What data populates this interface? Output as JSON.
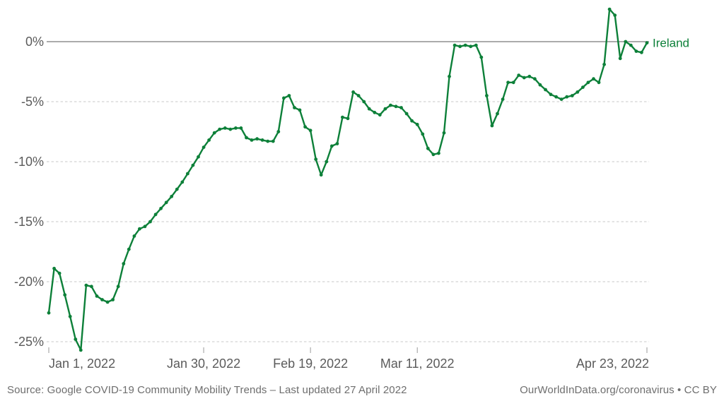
{
  "chart": {
    "series_label": "Ireland",
    "footer": {
      "source": "Source: Google COVID-19 Community Mobility Trends – Last updated 27 April 2022",
      "attribution": "OurWorldInData.org/coronavirus • CC BY"
    },
    "colors": {
      "series_green": "#0d8039",
      "zero_line": "#8f8f8f",
      "dashed_grid": "#dcdcdc",
      "axis_text": "#5b5b5b",
      "footer_text": "#6e6e6e",
      "tick_mark": "#9a9a9a"
    }
  },
  "chart_data": {
    "type": "line",
    "title": "",
    "xlabel": "",
    "ylabel": "",
    "grid": "horizontal-dashed",
    "legend_position": "end-of-line-label",
    "ylim": [
      -27.5,
      3.6
    ],
    "unit": "%",
    "y_ticks": [
      {
        "label": "0%",
        "value": 0
      },
      {
        "label": "-5%",
        "value": -5
      },
      {
        "label": "-10%",
        "value": -10
      },
      {
        "label": "-15%",
        "value": -15
      },
      {
        "label": "-20%",
        "value": -20
      },
      {
        "label": "-25%",
        "value": -25
      }
    ],
    "x_tick_labels": [
      {
        "label": "Jan 1, 2022",
        "day_index": 0,
        "align": "start"
      },
      {
        "label": "Jan 30, 2022",
        "day_index": 29,
        "align": "middle"
      },
      {
        "label": "Feb 19, 2022",
        "day_index": 49,
        "align": "middle"
      },
      {
        "label": "Mar 11, 2022",
        "day_index": 69,
        "align": "middle"
      },
      {
        "label": "Apr 23, 2022",
        "day_index": 112,
        "align": "end"
      }
    ],
    "x": [
      "2022-01-01",
      "2022-01-02",
      "2022-01-03",
      "2022-01-04",
      "2022-01-05",
      "2022-01-06",
      "2022-01-07",
      "2022-01-08",
      "2022-01-09",
      "2022-01-10",
      "2022-01-11",
      "2022-01-12",
      "2022-01-13",
      "2022-01-14",
      "2022-01-15",
      "2022-01-16",
      "2022-01-17",
      "2022-01-18",
      "2022-01-19",
      "2022-01-20",
      "2022-01-21",
      "2022-01-22",
      "2022-01-23",
      "2022-01-24",
      "2022-01-25",
      "2022-01-26",
      "2022-01-27",
      "2022-01-28",
      "2022-01-29",
      "2022-01-30",
      "2022-01-31",
      "2022-02-01",
      "2022-02-02",
      "2022-02-03",
      "2022-02-04",
      "2022-02-05",
      "2022-02-06",
      "2022-02-07",
      "2022-02-08",
      "2022-02-09",
      "2022-02-10",
      "2022-02-11",
      "2022-02-12",
      "2022-02-13",
      "2022-02-14",
      "2022-02-15",
      "2022-02-16",
      "2022-02-17",
      "2022-02-18",
      "2022-02-19",
      "2022-02-20",
      "2022-02-21",
      "2022-02-22",
      "2022-02-23",
      "2022-02-24",
      "2022-02-25",
      "2022-02-26",
      "2022-02-27",
      "2022-02-28",
      "2022-03-01",
      "2022-03-02",
      "2022-03-03",
      "2022-03-04",
      "2022-03-05",
      "2022-03-06",
      "2022-03-07",
      "2022-03-08",
      "2022-03-09",
      "2022-03-10",
      "2022-03-11",
      "2022-03-12",
      "2022-03-13",
      "2022-03-14",
      "2022-03-15",
      "2022-03-16",
      "2022-03-17",
      "2022-03-18",
      "2022-03-19",
      "2022-03-20",
      "2022-03-21",
      "2022-03-22",
      "2022-03-23",
      "2022-03-24",
      "2022-03-25",
      "2022-03-26",
      "2022-03-27",
      "2022-03-28",
      "2022-03-29",
      "2022-03-30",
      "2022-03-31",
      "2022-04-01",
      "2022-04-02",
      "2022-04-03",
      "2022-04-04",
      "2022-04-05",
      "2022-04-06",
      "2022-04-07",
      "2022-04-08",
      "2022-04-09",
      "2022-04-10",
      "2022-04-11",
      "2022-04-12",
      "2022-04-13",
      "2022-04-14",
      "2022-04-15",
      "2022-04-16",
      "2022-04-17",
      "2022-04-18",
      "2022-04-19",
      "2022-04-20",
      "2022-04-21",
      "2022-04-22",
      "2022-04-23"
    ],
    "series": [
      {
        "name": "Ireland",
        "color": "#0d8039",
        "values": [
          -22.6,
          -18.9,
          -19.3,
          -21.1,
          -22.9,
          -24.8,
          -25.7,
          -20.3,
          -20.4,
          -21.2,
          -21.5,
          -21.7,
          -21.5,
          -20.4,
          -18.5,
          -17.3,
          -16.2,
          -15.6,
          -15.4,
          -15.0,
          -14.4,
          -13.9,
          -13.4,
          -12.9,
          -12.3,
          -11.7,
          -11.0,
          -10.3,
          -9.6,
          -8.8,
          -8.2,
          -7.6,
          -7.3,
          -7.2,
          -7.3,
          -7.2,
          -7.2,
          -8.0,
          -8.2,
          -8.1,
          -8.2,
          -8.3,
          -8.3,
          -7.5,
          -4.7,
          -4.5,
          -5.5,
          -5.7,
          -7.1,
          -7.4,
          -9.8,
          -11.1,
          -10.0,
          -8.7,
          -8.5,
          -6.3,
          -6.4,
          -4.2,
          -4.5,
          -5.0,
          -5.6,
          -5.9,
          -6.1,
          -5.6,
          -5.3,
          -5.4,
          -5.5,
          -6.0,
          -6.6,
          -6.9,
          -7.7,
          -8.9,
          -9.4,
          -9.3,
          -7.6,
          -2.9,
          -0.3,
          -0.4,
          -0.3,
          -0.4,
          -0.3,
          -1.3,
          -4.5,
          -7.0,
          -6.0,
          -4.8,
          -3.4,
          -3.4,
          -2.8,
          -3.0,
          -2.9,
          -3.1,
          -3.6,
          -4.0,
          -4.4,
          -4.6,
          -4.8,
          -4.6,
          -4.5,
          -4.2,
          -3.8,
          -3.4,
          -3.1,
          -3.4,
          -1.9,
          2.7,
          2.2,
          -1.4,
          0.0,
          -0.3,
          -0.8,
          -0.9,
          -0.1
        ]
      }
    ]
  }
}
